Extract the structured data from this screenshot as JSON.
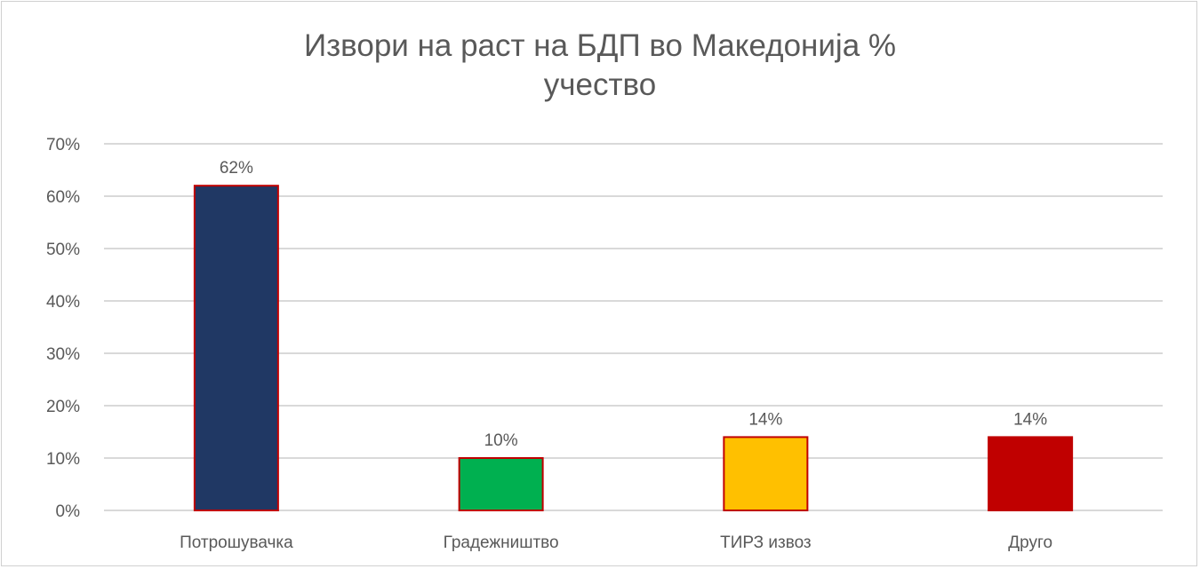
{
  "chart_data": {
    "type": "bar",
    "title_line1": "Извори на раст на БДП во Македонија %",
    "title_line2": "учество",
    "categories": [
      "Потрошувачка",
      "Градежништво",
      "ТИРЗ извоз",
      "Друго"
    ],
    "values": [
      62,
      10,
      14,
      14
    ],
    "data_labels": [
      "62%",
      "10%",
      "14%",
      "14%"
    ],
    "colors": [
      "#203864",
      "#00b050",
      "#ffc000",
      "#c00000"
    ],
    "border_color": "#c00000",
    "ylim": [
      0,
      70
    ],
    "yticks": [
      0,
      10,
      20,
      30,
      40,
      50,
      60,
      70
    ],
    "ytick_labels": [
      "0%",
      "10%",
      "20%",
      "30%",
      "40%",
      "50%",
      "60%",
      "70%"
    ],
    "grid": true,
    "legend": "none"
  }
}
